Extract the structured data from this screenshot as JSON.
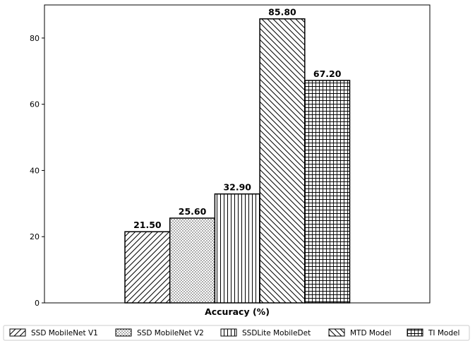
{
  "chart_data": {
    "type": "bar",
    "title": "",
    "xlabel": "Accuracy (%)",
    "ylabel": "",
    "ylim": [
      0,
      90
    ],
    "yticks": [
      0,
      20,
      40,
      60,
      80
    ],
    "grid": false,
    "legend_position": "bottom",
    "bar_color": "#ffffff",
    "edge_color": "#000000",
    "series": [
      {
        "name": "SSD MobileNet V1",
        "value": 21.5,
        "label": "21.50",
        "pattern": "diagonal-forward"
      },
      {
        "name": "SSD MobileNet V2",
        "value": 25.6,
        "label": "25.60",
        "pattern": "dots"
      },
      {
        "name": "SSDLite MobileDet",
        "value": 32.9,
        "label": "32.90",
        "pattern": "vertical"
      },
      {
        "name": "MTD Model",
        "value": 85.8,
        "label": "85.80",
        "pattern": "diagonal-back"
      },
      {
        "name": "TI Model",
        "value": 67.2,
        "label": "67.20",
        "pattern": "grid"
      }
    ]
  }
}
